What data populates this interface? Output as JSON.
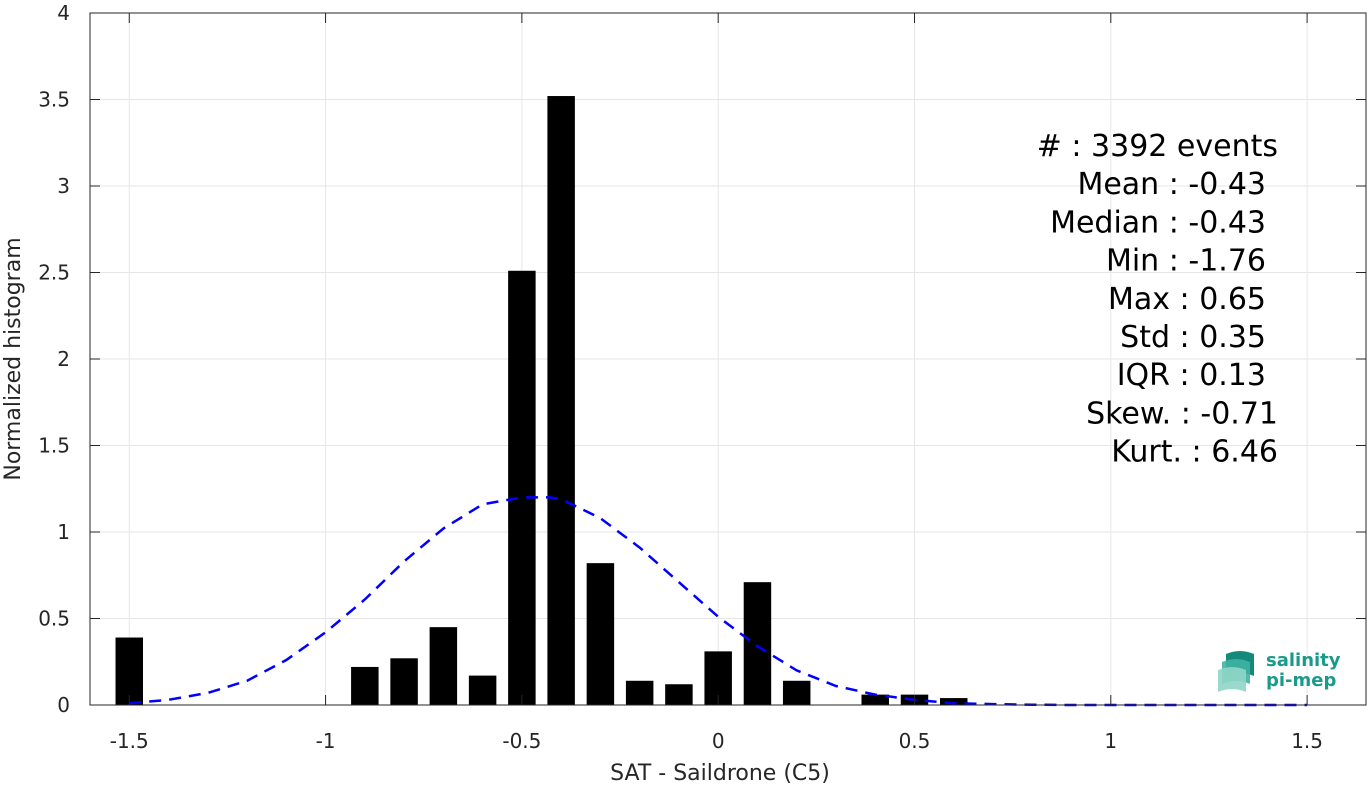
{
  "chart_data": {
    "type": "bar",
    "xlabel": "SAT - Saildrone (C5)",
    "ylabel": "Normalized histogram",
    "xlim": [
      -1.6,
      1.65
    ],
    "ylim": [
      0,
      4
    ],
    "grid": true,
    "bar_width": 0.07,
    "x_ticks": [
      -1.5,
      -1,
      -0.5,
      0,
      0.5,
      1,
      1.5
    ],
    "x_tick_labels": [
      "-1.5",
      "-1",
      "-0.5",
      "0",
      "0.5",
      "1",
      "1.5"
    ],
    "y_ticks": [
      0,
      0.5,
      1,
      1.5,
      2,
      2.5,
      3,
      3.5,
      4
    ],
    "y_tick_labels": [
      "0",
      "0.5",
      "1",
      "1.5",
      "2",
      "2.5",
      "3",
      "3.5",
      "4"
    ],
    "bars": {
      "x": [
        -1.5,
        -0.9,
        -0.8,
        -0.7,
        -0.6,
        -0.5,
        -0.4,
        -0.3,
        -0.2,
        -0.1,
        0.0,
        0.1,
        0.2,
        0.4,
        0.5,
        0.6
      ],
      "values": [
        0.39,
        0.22,
        0.27,
        0.45,
        0.17,
        2.51,
        3.52,
        0.82,
        0.14,
        0.12,
        0.31,
        0.71,
        0.14,
        0.06,
        0.06,
        0.04
      ],
      "color": "#000000"
    },
    "fit_curve": {
      "style": "dashed",
      "color": "#0000ff",
      "x": [
        -1.5,
        -1.4,
        -1.3,
        -1.2,
        -1.1,
        -1.0,
        -0.9,
        -0.8,
        -0.7,
        -0.6,
        -0.5,
        -0.43,
        -0.4,
        -0.3,
        -0.2,
        -0.1,
        0.0,
        0.1,
        0.2,
        0.3,
        0.4,
        0.5,
        0.6,
        0.7,
        0.8,
        0.9,
        1.0,
        1.1,
        1.2,
        1.3,
        1.4,
        1.5
      ],
      "y": [
        0.01,
        0.03,
        0.07,
        0.14,
        0.26,
        0.42,
        0.61,
        0.83,
        1.02,
        1.16,
        1.2,
        1.2,
        1.19,
        1.08,
        0.91,
        0.71,
        0.51,
        0.34,
        0.2,
        0.11,
        0.06,
        0.03,
        0.01,
        0.005,
        0.002,
        0.0,
        0.0,
        0.0,
        0.0,
        0.0,
        0.0,
        0.0
      ]
    },
    "stats": [
      "#  : 3392 events",
      "Mean : -0.43",
      "Median : -0.43",
      "Min : -1.76",
      "Max : 0.65",
      "Std : 0.35",
      "IQR : 0.13",
      "Skew. : -0.71",
      "Kurt. : 6.46"
    ]
  },
  "logo": {
    "line1": "salinity",
    "line2": "pi-mep",
    "color": "#1a9a8a"
  }
}
